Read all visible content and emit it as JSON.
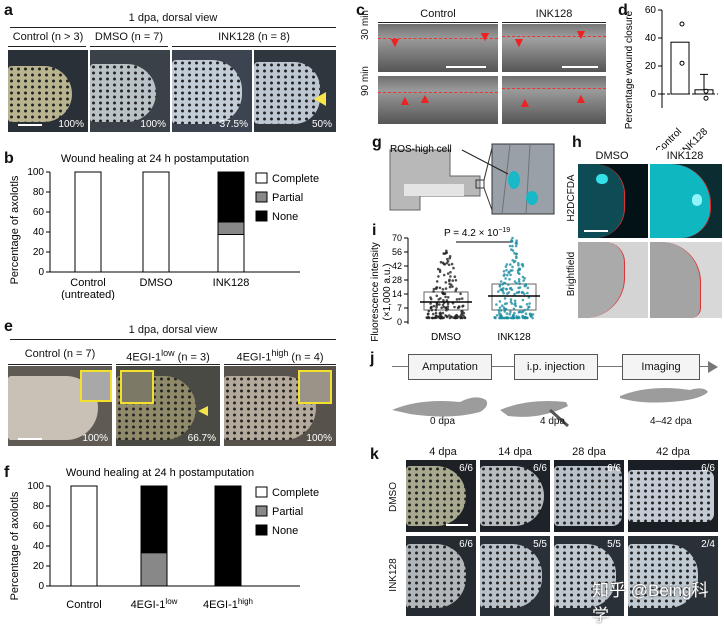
{
  "panel_labels": {
    "a": "a",
    "b": "b",
    "c": "c",
    "d": "d",
    "e": "e",
    "f": "f",
    "g": "g",
    "h": "h",
    "i": "i",
    "j": "j",
    "k": "k"
  },
  "a": {
    "header": "1 dpa, dorsal view",
    "cols": [
      "Control (n > 3)",
      "DMSO (n = 7)",
      "INK128 (n = 8)"
    ],
    "pcts": [
      "100%",
      "100%",
      "37.5%",
      "50%"
    ]
  },
  "b": {
    "title": "Wound healing at 24 h postamputation",
    "ylabel": "Percentage of axolotls",
    "legend": [
      "Complete",
      "Partial",
      "None"
    ]
  },
  "c": {
    "cols": [
      "Control",
      "INK128"
    ],
    "rows": [
      "30 min",
      "90 min"
    ]
  },
  "d": {
    "ylabel": "Percentage wound closure"
  },
  "e": {
    "header": "1 dpa, dorsal view",
    "cols": [
      "Control (n = 7)",
      "4EGI-1",
      "low",
      "(n = 3)",
      "4EGI-1",
      "high",
      "(n = 4)"
    ],
    "pcts": [
      "100%",
      "66.7%",
      "100%"
    ]
  },
  "f": {
    "title": "Wound healing at 24 h postamputation",
    "ylabel": "Percentage of axolotls",
    "legend": [
      "Complete",
      "Partial",
      "None"
    ]
  },
  "g": {
    "label": "ROS-high cell"
  },
  "h": {
    "cols": [
      "DMSO",
      "INK128"
    ],
    "rows": [
      "H2DCFDA",
      "Brightfield"
    ]
  },
  "i": {
    "ylabel1": "Fluorescence intensity",
    "ylabel2": "(×1,000 a.u.)",
    "pvalue": "P = 4.2 × 10",
    "pexp": "−19"
  },
  "j": {
    "steps": [
      "Amputation",
      "i.p. injection",
      "Imaging"
    ],
    "times": [
      "0 dpa",
      "4 dpa",
      "4–42 dpa"
    ]
  },
  "k": {
    "cols": [
      "4 dpa",
      "14 dpa",
      "28 dpa",
      "42 dpa"
    ],
    "rows": [
      "DMSO",
      "INK128"
    ],
    "dmso_counts": [
      "6/6",
      "6/6",
      "6/6",
      "6/6"
    ],
    "ink_counts": [
      "6/6",
      "5/5",
      "5/5",
      "2/4"
    ]
  },
  "watermark": "知乎 @Being科学",
  "chart_data": [
    {
      "type": "bar",
      "panel": "b",
      "stacked": true,
      "title": "Wound healing at 24 h postamputation",
      "ylabel": "Percentage of axolotls",
      "ylim": [
        0,
        100
      ],
      "categories": [
        "Control (untreated)",
        "DMSO",
        "INK128"
      ],
      "series": [
        {
          "name": "Complete",
          "color": "#ffffff",
          "values": [
            100,
            100,
            37.5
          ]
        },
        {
          "name": "Partial",
          "color": "#888888",
          "values": [
            0,
            0,
            12.5
          ]
        },
        {
          "name": "None",
          "color": "#000000",
          "values": [
            0,
            0,
            50
          ]
        }
      ]
    },
    {
      "type": "bar",
      "panel": "d",
      "ylabel": "Percentage wound closure",
      "ylim": [
        -10,
        60
      ],
      "categories": [
        "Control",
        "INK128"
      ],
      "values": [
        37,
        3
      ],
      "points": [
        [
          50,
          22
        ],
        [
          2,
          -3
        ]
      ]
    },
    {
      "type": "bar",
      "panel": "f",
      "stacked": true,
      "title": "Wound healing at 24 h postamputation",
      "ylabel": "Percentage of axolotls",
      "ylim": [
        0,
        100
      ],
      "categories": [
        "Control",
        "4EGI-1low",
        "4EGI-1high"
      ],
      "series": [
        {
          "name": "Complete",
          "color": "#ffffff",
          "values": [
            100,
            0,
            0
          ]
        },
        {
          "name": "Partial",
          "color": "#888888",
          "values": [
            0,
            33.3,
            0
          ]
        },
        {
          "name": "None",
          "color": "#000000",
          "values": [
            0,
            66.7,
            100
          ]
        }
      ]
    },
    {
      "type": "scatter",
      "panel": "i",
      "ylabel": "Fluorescence intensity (×1,000 a.u.)",
      "categories": [
        "DMSO",
        "INK128"
      ],
      "yticks": [
        0,
        7,
        14,
        28,
        42,
        56,
        70
      ],
      "medians": [
        10,
        13
      ]
    }
  ],
  "ticks": {
    "b": [
      "100",
      "80",
      "60",
      "40",
      "20",
      "0"
    ],
    "d": [
      "60",
      "40",
      "20",
      "0"
    ],
    "i": [
      "70",
      "56",
      "42",
      "28",
      "14",
      "7",
      "0"
    ],
    "i_cats": [
      "DMSO",
      "INK128"
    ],
    "d_cats": [
      "Control",
      "INK128"
    ],
    "b_cats": [
      "Control",
      "(untreated)",
      "DMSO",
      "INK128"
    ],
    "f_cats": [
      "Control",
      "4EGI-1",
      "low",
      "4EGI-1",
      "high"
    ]
  }
}
